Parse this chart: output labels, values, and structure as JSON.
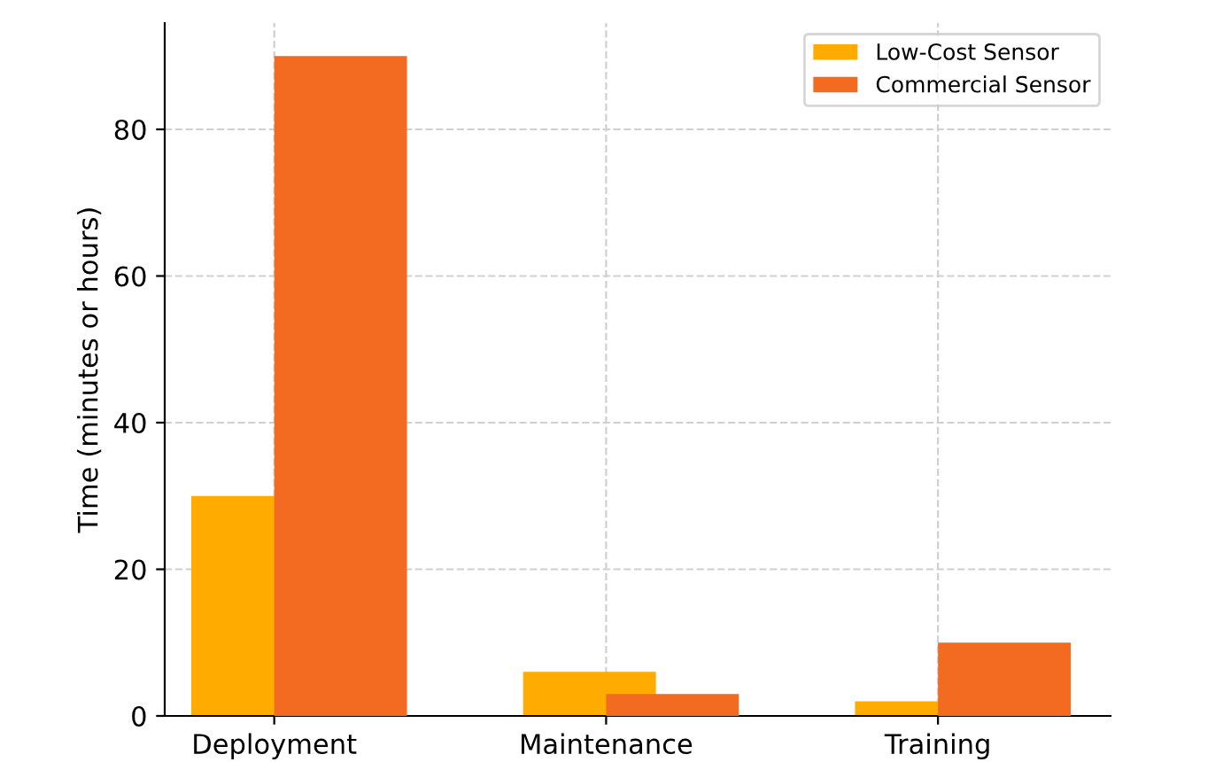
{
  "chart_data": {
    "type": "bar",
    "ylabel": "Time (minutes or hours)",
    "categories": [
      "Deployment",
      "Maintenance",
      "Training"
    ],
    "series": [
      {
        "name": "Low-Cost Sensor",
        "color": "#ffab00",
        "values": [
          30,
          6,
          2
        ]
      },
      {
        "name": "Commercial Sensor",
        "color": "#f26b21",
        "values": [
          90,
          3,
          10
        ]
      }
    ],
    "ylim": [
      0,
      94.5
    ],
    "yticks": [
      0,
      20,
      40,
      60,
      80
    ],
    "grid": true,
    "legend": "top right"
  }
}
